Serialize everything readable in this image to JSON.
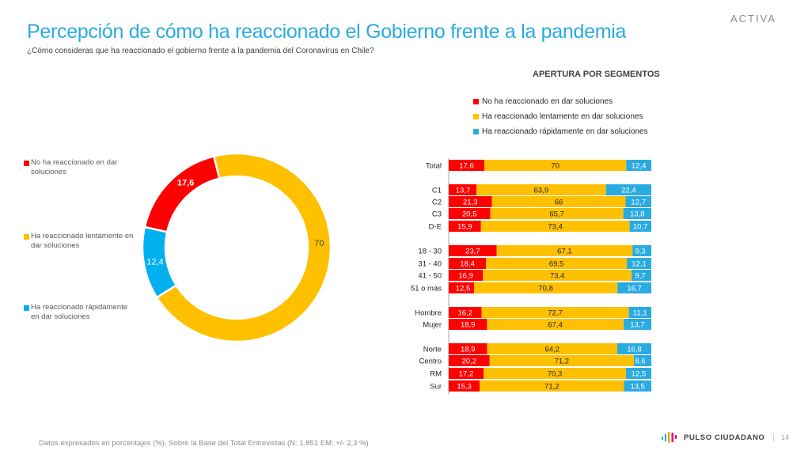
{
  "header": {
    "title": "Percepción de cómo ha reaccionado el Gobierno frente a la pandemia",
    "subtitle": "¿Cómo consideras que ha reaccionado el gobierno frente a la pandemia del Coronavirus en Chile?",
    "brand": "ACTIVA"
  },
  "colors": {
    "red": "#ff0000",
    "yellow": "#ffc000",
    "blue": "#29abe2",
    "title": "#29abe2"
  },
  "chart_data": [
    {
      "type": "pie",
      "variant": "donut",
      "title": "",
      "legend_position": "left",
      "labels": [
        "No ha reaccionado en dar soluciones",
        "Ha reaccionado lentamente en dar soluciones",
        "Ha reaccionado rápidamente en dar soluciones"
      ],
      "values": [
        17.6,
        70,
        12.4
      ],
      "value_labels": [
        "17,6",
        "70",
        "12,4"
      ],
      "colors": [
        "#ff0000",
        "#ffc000",
        "#00b0f0"
      ]
    },
    {
      "type": "bar",
      "orientation": "horizontal",
      "stacked": true,
      "title": "APERTURA POR SEGMENTOS",
      "legend_position": "top",
      "xlim": [
        0,
        100
      ],
      "categories": [
        "Total",
        "C1",
        "C2",
        "C3",
        "D-E",
        "18 - 30",
        "31 - 40",
        "41 - 50",
        "51 o más",
        "Hombre",
        "Mujer",
        "Norte",
        "Centro",
        "RM",
        "Sur"
      ],
      "groups": [
        [
          "Total"
        ],
        [
          "C1",
          "C2",
          "C3",
          "D-E"
        ],
        [
          "18 - 30",
          "31 - 40",
          "41 - 50",
          "51 o más"
        ],
        [
          "Hombre",
          "Mujer"
        ],
        [
          "Norte",
          "Centro",
          "RM",
          "Sur"
        ]
      ],
      "series": [
        {
          "name": "No ha reaccionado en dar soluciones",
          "color": "#ff0000",
          "values": [
            17.6,
            13.7,
            21.3,
            20.5,
            15.9,
            23.7,
            18.4,
            16.9,
            12.5,
            16.2,
            18.9,
            18.9,
            20.2,
            17.2,
            15.3
          ],
          "labels": [
            "17,6",
            "13,7",
            "21,3",
            "20,5",
            "15,9",
            "23,7",
            "18,4",
            "16,9",
            "12,5",
            "16,2",
            "18,9",
            "18,9",
            "20,2",
            "17,2",
            "15,3"
          ]
        },
        {
          "name": "Ha reaccionado lentamente en dar soluciones",
          "color": "#ffc000",
          "values": [
            70,
            63.9,
            66,
            65.7,
            73.4,
            67.1,
            69.5,
            73.4,
            70.8,
            72.7,
            67.4,
            64.2,
            71.2,
            70.3,
            71.2
          ],
          "labels": [
            "70",
            "63,9",
            "66",
            "65,7",
            "73,4",
            "67,1",
            "69,5",
            "73,4",
            "70,8",
            "72,7",
            "67,4",
            "64,2",
            "71,2",
            "70,3",
            "71,2"
          ]
        },
        {
          "name": "Ha reaccionado rápidamente en dar soluciones",
          "color": "#29abe2",
          "values": [
            12.4,
            22.4,
            12.7,
            13.8,
            10.7,
            9.3,
            12.1,
            9.7,
            16.7,
            11.1,
            13.7,
            16.8,
            8.6,
            12.5,
            13.5
          ],
          "labels": [
            "12,4",
            "22,4",
            "12,7",
            "13,8",
            "10,7",
            "9,3",
            "12,1",
            "9,7",
            "16,7",
            "11,1",
            "13,7",
            "16,8",
            "8,6",
            "12,5",
            "13,5"
          ]
        }
      ]
    }
  ],
  "legend_left": [
    {
      "label": "No ha reaccionado en dar soluciones",
      "color": "#ff0000"
    },
    {
      "label": "Ha reaccionado lentamente en dar soluciones",
      "color": "#ffc000"
    },
    {
      "label": "Ha reaccionado rápidamente en dar soluciones",
      "color": "#00b0f0"
    }
  ],
  "legend_right": [
    {
      "label": "No ha reaccionado en dar soluciones",
      "color": "#ff0000"
    },
    {
      "label": "Ha reaccionado lentamente en dar soluciones",
      "color": "#ffc000"
    },
    {
      "label": "Ha reaccionado rápidamente en dar soluciones",
      "color": "#29abe2"
    }
  ],
  "footer": {
    "note": "Datos expresados en porcentajes (%). Sobre la Base del Total Entrevistas (N: 1.851  EM: +/- 2,3 %)",
    "logo_text": "PULSO CIUDADANO",
    "separator": "|",
    "page_number": "14"
  }
}
